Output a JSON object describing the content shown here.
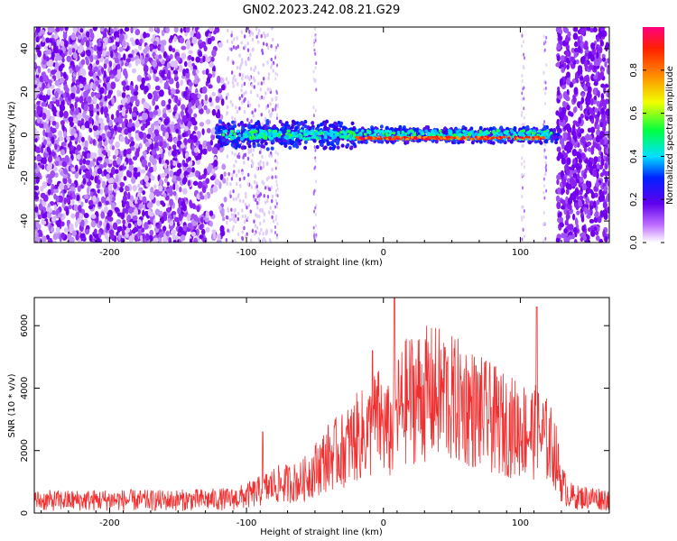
{
  "title": "GN02.2023.242.08.21.G29",
  "colors": {
    "snr_line": "#f03030",
    "spectrum_dots": "#7000ee"
  },
  "chart_data": [
    {
      "type": "heatmap",
      "xlabel": "Height of straight line (km)",
      "ylabel": "Frequency (Hz)",
      "xlim": [
        -255,
        165
      ],
      "ylim": [
        -50,
        50
      ],
      "xticks": [
        -200,
        -100,
        0,
        100
      ],
      "yticks": [
        -40,
        -20,
        0,
        20,
        40
      ],
      "grid": false,
      "colorbar": {
        "label": "Normalized spectral amplitude",
        "range": [
          0,
          1
        ],
        "ticks": [
          "0.0",
          "0.2",
          "0.4",
          "0.6",
          "0.8"
        ],
        "colormap": "rainbow"
      },
      "signal_trace": {
        "frequency_hz": 0,
        "x_range": [
          -122,
          128
        ],
        "peak_x_range": [
          -20,
          118
        ]
      }
    },
    {
      "type": "line",
      "xlabel": "Height of straight line (km)",
      "ylabel": "SNR (10 * v/v)",
      "xlim": [
        -255,
        165
      ],
      "ylim": [
        0,
        6900
      ],
      "xticks": [
        -200,
        -100,
        0,
        100
      ],
      "yticks": [
        0,
        2000,
        4000,
        6000
      ],
      "grid": false,
      "series": [
        {
          "x": [
            -255,
            -230,
            -200,
            -170,
            -140,
            -110,
            -100,
            -90,
            -85,
            -80,
            -60,
            -50,
            -40,
            -30,
            -20,
            -10,
            -5,
            0,
            5,
            10,
            15,
            20,
            30,
            40,
            50,
            60,
            70,
            80,
            90,
            100,
            110,
            115,
            120,
            125,
            130,
            135,
            140,
            150,
            165
          ],
          "values": [
            400,
            400,
            420,
            400,
            420,
            450,
            550,
            700,
            800,
            900,
            1000,
            1400,
            1800,
            2000,
            2400,
            2600,
            3000,
            2800,
            2500,
            3200,
            3500,
            3700,
            3800,
            3800,
            3600,
            3500,
            3200,
            3000,
            2800,
            2700,
            2600,
            2500,
            2300,
            2000,
            1000,
            600,
            500,
            500,
            450
          ],
          "spikes": [
            {
              "x": -88,
              "y": 2600
            },
            {
              "x": -8,
              "y": 5200
            },
            {
              "x": 8,
              "y": 6900
            },
            {
              "x": 45,
              "y": 5300
            },
            {
              "x": 112,
              "y": 6600
            }
          ]
        }
      ]
    }
  ]
}
